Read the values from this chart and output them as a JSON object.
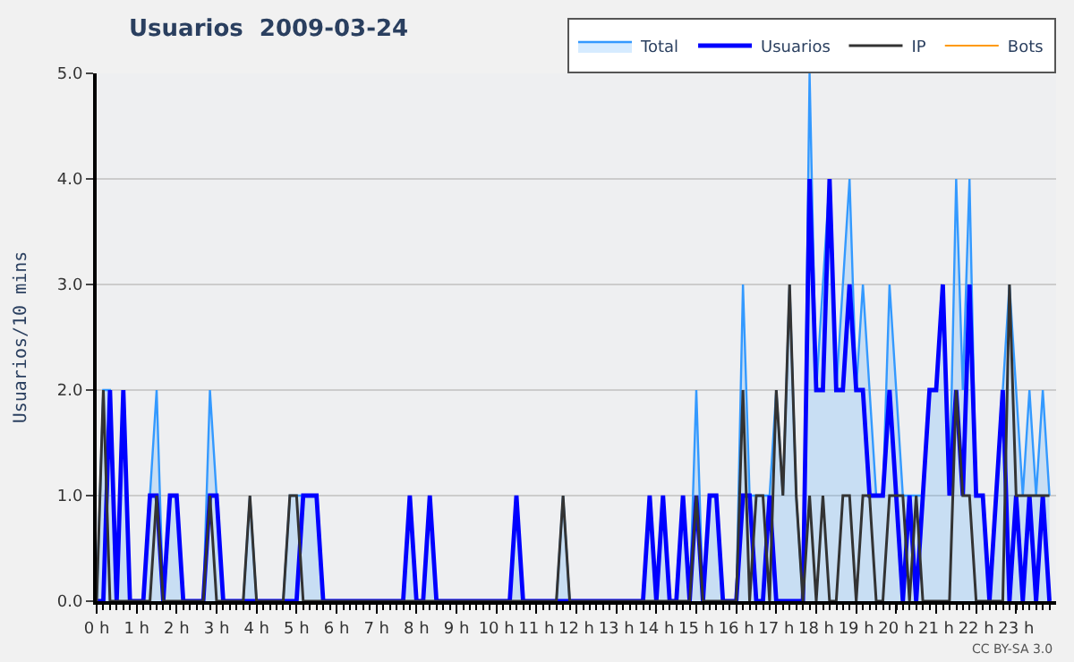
{
  "chart_data": {
    "type": "line",
    "title": "Usuarios  2009-03-24",
    "ylabel": "Usuarios/10 mins",
    "x": [
      0,
      0.1667,
      0.3333,
      0.5,
      0.6667,
      0.8333,
      1,
      1.1667,
      1.3333,
      1.5,
      1.6667,
      1.8333,
      2,
      2.1667,
      2.3333,
      2.5,
      2.6667,
      2.8333,
      3,
      3.1667,
      3.3333,
      3.5,
      3.6667,
      3.8333,
      4,
      4.1667,
      4.3333,
      4.5,
      4.6667,
      4.8333,
      5,
      5.1667,
      5.3333,
      5.5,
      5.6667,
      5.8333,
      6,
      6.1667,
      6.3333,
      6.5,
      6.6667,
      6.8333,
      7,
      7.1667,
      7.3333,
      7.5,
      7.6667,
      7.8333,
      8,
      8.1667,
      8.3333,
      8.5,
      8.6667,
      8.8333,
      9,
      9.1667,
      9.3333,
      9.5,
      9.6667,
      9.8333,
      10,
      10.1667,
      10.3333,
      10.5,
      10.6667,
      10.8333,
      11,
      11.1667,
      11.3333,
      11.5,
      11.6667,
      11.8333,
      12,
      12.1667,
      12.3333,
      12.5,
      12.6667,
      12.8333,
      13,
      13.1667,
      13.3333,
      13.5,
      13.6667,
      13.8333,
      14,
      14.1667,
      14.3333,
      14.5,
      14.6667,
      14.8333,
      15,
      15.1667,
      15.3333,
      15.5,
      15.6667,
      15.8333,
      16,
      16.1667,
      16.3333,
      16.5,
      16.6667,
      16.8333,
      17,
      17.1667,
      17.3333,
      17.5,
      17.6667,
      17.8333,
      18,
      18.1667,
      18.3333,
      18.5,
      18.6667,
      18.8333,
      19,
      19.1667,
      19.3333,
      19.5,
      19.6667,
      19.8333,
      20,
      20.1667,
      20.3333,
      20.5,
      20.6667,
      20.8333,
      21,
      21.1667,
      21.3333,
      21.5,
      21.6667,
      21.8333,
      22,
      22.1667,
      22.3333,
      22.5,
      22.6667,
      22.8333,
      23,
      23.1667,
      23.3333,
      23.5,
      23.6667,
      23.8333
    ],
    "series": [
      {
        "name": "Total",
        "type": "area",
        "color": "#3399ff",
        "values": [
          0,
          2,
          2,
          0,
          2,
          0,
          0,
          0,
          1,
          2,
          0,
          1,
          1,
          0,
          0,
          0,
          0,
          2,
          1,
          0,
          0,
          0,
          0,
          1,
          0,
          0,
          0,
          0,
          0,
          1,
          1,
          1,
          1,
          1,
          0,
          0,
          0,
          0,
          0,
          0,
          0,
          0,
          0,
          0,
          0,
          0,
          0,
          1,
          0,
          0,
          1,
          0,
          0,
          0,
          0,
          0,
          0,
          0,
          0,
          0,
          0,
          0,
          0,
          1,
          0,
          0,
          0,
          0,
          0,
          0,
          1,
          0,
          0,
          0,
          0,
          0,
          0,
          0,
          0,
          0,
          0,
          0,
          0,
          1,
          0,
          1,
          0,
          0,
          1,
          0,
          2,
          0,
          1,
          1,
          0,
          0,
          0,
          3,
          1,
          1,
          1,
          1,
          2,
          1,
          3,
          1,
          0,
          5,
          2,
          3,
          4,
          2,
          3,
          4,
          2,
          3,
          2,
          1,
          1,
          3,
          2,
          1,
          1,
          1,
          1,
          2,
          2,
          3,
          1,
          4,
          2,
          4,
          1,
          1,
          0,
          1,
          2,
          3,
          2,
          1,
          2,
          1,
          2,
          1
        ]
      },
      {
        "name": "Usuarios",
        "color": "#0000ff",
        "values": [
          0,
          0,
          2,
          0,
          2,
          0,
          0,
          0,
          1,
          1,
          0,
          1,
          1,
          0,
          0,
          0,
          0,
          1,
          1,
          0,
          0,
          0,
          0,
          0,
          0,
          0,
          0,
          0,
          0,
          0,
          0,
          1,
          1,
          1,
          0,
          0,
          0,
          0,
          0,
          0,
          0,
          0,
          0,
          0,
          0,
          0,
          0,
          1,
          0,
          0,
          1,
          0,
          0,
          0,
          0,
          0,
          0,
          0,
          0,
          0,
          0,
          0,
          0,
          1,
          0,
          0,
          0,
          0,
          0,
          0,
          0,
          0,
          0,
          0,
          0,
          0,
          0,
          0,
          0,
          0,
          0,
          0,
          0,
          1,
          0,
          1,
          0,
          0,
          1,
          0,
          1,
          0,
          1,
          1,
          0,
          0,
          0,
          1,
          1,
          0,
          0,
          1,
          0,
          0,
          0,
          0,
          0,
          4,
          2,
          2,
          4,
          2,
          2,
          3,
          2,
          2,
          1,
          1,
          1,
          2,
          1,
          0,
          1,
          0,
          1,
          2,
          2,
          3,
          1,
          2,
          1,
          3,
          1,
          1,
          0,
          1,
          2,
          0,
          1,
          0,
          1,
          0,
          1,
          0
        ]
      },
      {
        "name": "IP",
        "color": "#333333",
        "values": [
          0,
          2,
          0,
          0,
          0,
          0,
          0,
          0,
          0,
          1,
          0,
          0,
          0,
          0,
          0,
          0,
          0,
          1,
          0,
          0,
          0,
          0,
          0,
          1,
          0,
          0,
          0,
          0,
          0,
          1,
          1,
          0,
          0,
          0,
          0,
          0,
          0,
          0,
          0,
          0,
          0,
          0,
          0,
          0,
          0,
          0,
          0,
          0,
          0,
          0,
          0,
          0,
          0,
          0,
          0,
          0,
          0,
          0,
          0,
          0,
          0,
          0,
          0,
          0,
          0,
          0,
          0,
          0,
          0,
          0,
          1,
          0,
          0,
          0,
          0,
          0,
          0,
          0,
          0,
          0,
          0,
          0,
          0,
          0,
          0,
          0,
          0,
          0,
          0,
          0,
          1,
          0,
          0,
          0,
          0,
          0,
          0,
          2,
          0,
          1,
          1,
          0,
          2,
          1,
          3,
          1,
          0,
          1,
          0,
          1,
          0,
          0,
          1,
          1,
          0,
          1,
          1,
          0,
          0,
          1,
          1,
          1,
          0,
          1,
          0,
          0,
          0,
          0,
          0,
          2,
          1,
          1,
          0,
          0,
          0,
          0,
          0,
          3,
          1,
          1,
          1,
          1,
          1,
          1
        ]
      },
      {
        "name": "Bots",
        "color": "#ff9900",
        "values": [
          null,
          null,
          null,
          null,
          null,
          null,
          null,
          null,
          null,
          null,
          null,
          null,
          null,
          null,
          null,
          null,
          null,
          null,
          null,
          null,
          null,
          null,
          null,
          null,
          null,
          null,
          null,
          null,
          null,
          null,
          null,
          null,
          null,
          null,
          null,
          null,
          null,
          null,
          null,
          null,
          null,
          null,
          null,
          null,
          null,
          null,
          null,
          null,
          null,
          null,
          null,
          null,
          null,
          null,
          null,
          null,
          null,
          null,
          null,
          null,
          null,
          null,
          null,
          null,
          null,
          null,
          null,
          null,
          null,
          null,
          null,
          null,
          null,
          null,
          null,
          null,
          null,
          null,
          null,
          null,
          null,
          null,
          null,
          null,
          null,
          null,
          null,
          null,
          null,
          null,
          null,
          null,
          null,
          null,
          null,
          null,
          null,
          null,
          null,
          null,
          null,
          null,
          null,
          null,
          null,
          null,
          null,
          null,
          null,
          null,
          null,
          null,
          null,
          null,
          null,
          null,
          null,
          null,
          null,
          null,
          null,
          null,
          null,
          null,
          null,
          null,
          null,
          null,
          null,
          null,
          null,
          null,
          null,
          null,
          null,
          null,
          null,
          null,
          null,
          null,
          null,
          null,
          null,
          null
        ]
      }
    ],
    "xlim": [
      0,
      24
    ],
    "xticks": [
      {
        "value": 0,
        "label": "0 h"
      },
      {
        "value": 1,
        "label": "1 h"
      },
      {
        "value": 2,
        "label": "2 h"
      },
      {
        "value": 3,
        "label": "3 h"
      },
      {
        "value": 4,
        "label": "4 h"
      },
      {
        "value": 5,
        "label": "5 h"
      },
      {
        "value": 6,
        "label": "6 h"
      },
      {
        "value": 7,
        "label": "7 h"
      },
      {
        "value": 8,
        "label": "8 h"
      },
      {
        "value": 9,
        "label": "9 h"
      },
      {
        "value": 10,
        "label": "10 h"
      },
      {
        "value": 11,
        "label": "11 h"
      },
      {
        "value": 12,
        "label": "12 h"
      },
      {
        "value": 13,
        "label": "13 h"
      },
      {
        "value": 14,
        "label": "14 h"
      },
      {
        "value": 15,
        "label": "15 h"
      },
      {
        "value": 16,
        "label": "16 h"
      },
      {
        "value": 17,
        "label": "17 h"
      },
      {
        "value": 18,
        "label": "18 h"
      },
      {
        "value": 19,
        "label": "19 h"
      },
      {
        "value": 20,
        "label": "20 h"
      },
      {
        "value": 21,
        "label": "21 h"
      },
      {
        "value": 22,
        "label": "22 h"
      },
      {
        "value": 23,
        "label": "23 h"
      }
    ],
    "ylim": [
      0,
      5
    ],
    "yticks": [
      {
        "value": 0,
        "label": "0.0"
      },
      {
        "value": 1,
        "label": "1.0"
      },
      {
        "value": 2,
        "label": "2.0"
      },
      {
        "value": 3,
        "label": "3.0"
      },
      {
        "value": 4,
        "label": "4.0"
      },
      {
        "value": 5,
        "label": "5.0"
      }
    ],
    "grid": "y",
    "legend": "top right",
    "annotations": [
      "CC BY-SA 3.0"
    ]
  }
}
